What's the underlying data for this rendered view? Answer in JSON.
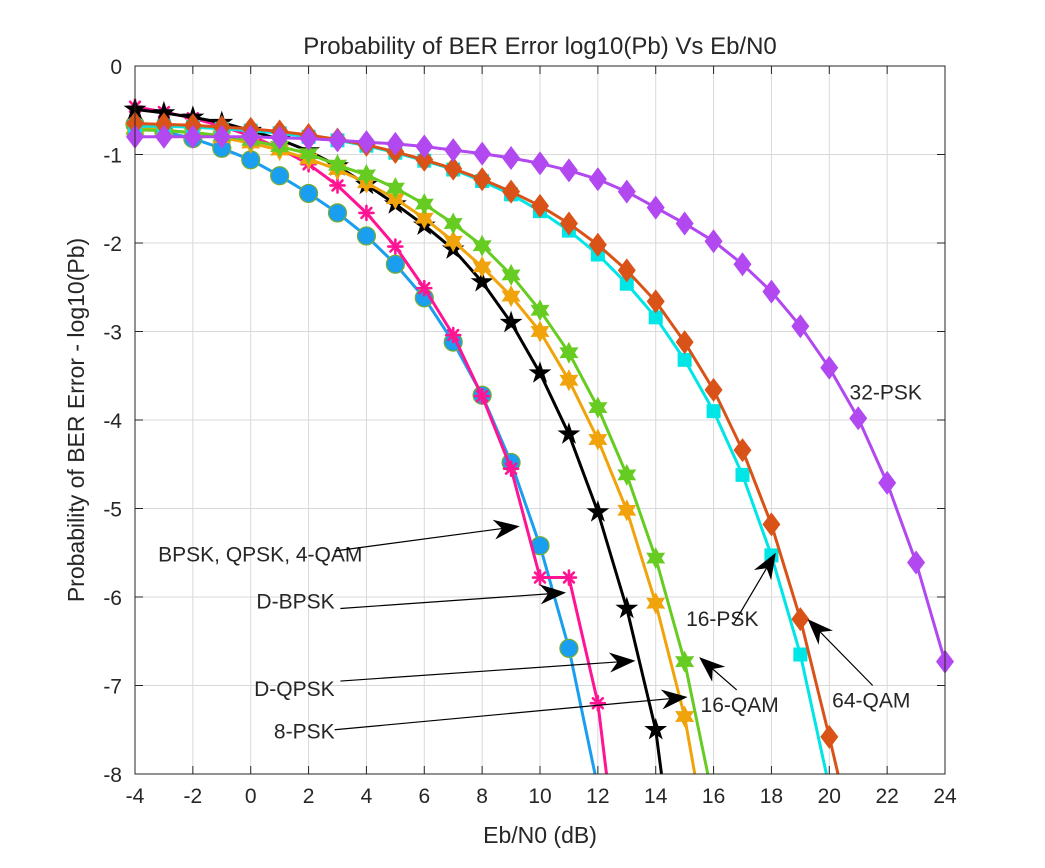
{
  "chart_data": {
    "type": "line",
    "title": "Probability of BER Error log10(Pb) Vs Eb/N0",
    "xlabel": "Eb/N0 (dB)",
    "ylabel": "Probability of BER Error - log10(Pb)",
    "xlim": [
      -4,
      24
    ],
    "ylim": [
      -8,
      0
    ],
    "xticks": [
      -4,
      -2,
      0,
      2,
      4,
      6,
      8,
      10,
      12,
      14,
      16,
      18,
      20,
      22,
      24
    ],
    "yticks": [
      0,
      -1,
      -2,
      -3,
      -4,
      -5,
      -6,
      -7,
      -8
    ],
    "grid": true,
    "series": [
      {
        "id": "bpsk",
        "color": "#1a9ff0",
        "marker": "circle",
        "x": [
          -4,
          -3,
          -2,
          -1,
          0,
          1,
          2,
          3,
          4,
          5,
          6,
          7,
          8,
          9,
          10,
          11,
          11.9
        ],
        "y": [
          -0.66,
          -0.74,
          -0.82,
          -0.93,
          -1.06,
          -1.24,
          -1.44,
          -1.66,
          -1.92,
          -2.24,
          -2.62,
          -3.12,
          -3.72,
          -4.48,
          -5.42,
          -6.58,
          -8.0
        ]
      },
      {
        "id": "dbpsk",
        "color": "#ff1493",
        "marker": "asterisk",
        "x": [
          -4,
          -3,
          -2,
          -1,
          0,
          1,
          2,
          3,
          4,
          5,
          6,
          7,
          8,
          9,
          10,
          11,
          12,
          12.3
        ],
        "y": [
          -0.46,
          -0.52,
          -0.59,
          -0.68,
          -0.79,
          -0.93,
          -1.11,
          -1.35,
          -1.66,
          -2.04,
          -2.51,
          -3.04,
          -3.73,
          -4.55,
          -5.78,
          -5.78,
          -7.2,
          -8.0
        ]
      },
      {
        "id": "dqpsk",
        "color": "#000000",
        "marker": "star",
        "x": [
          -4,
          -3,
          -2,
          -1,
          0,
          1,
          2,
          3,
          4,
          5,
          6,
          7,
          8,
          9,
          10,
          11,
          12,
          13,
          14,
          14.2
        ],
        "y": [
          -0.49,
          -0.53,
          -0.58,
          -0.64,
          -0.73,
          -0.83,
          -0.96,
          -1.13,
          -1.34,
          -1.56,
          -1.8,
          -2.07,
          -2.44,
          -2.9,
          -3.47,
          -4.16,
          -5.04,
          -6.13,
          -7.5,
          -8.0
        ]
      },
      {
        "id": "psk8",
        "color": "#f0a30a",
        "marker": "hexagram",
        "x": [
          -4,
          -3,
          -2,
          -1,
          0,
          1,
          2,
          3,
          4,
          5,
          6,
          7,
          8,
          9,
          10,
          11,
          12,
          13,
          14,
          15,
          15.35
        ],
        "y": [
          -0.7,
          -0.72,
          -0.76,
          -0.81,
          -0.87,
          -0.95,
          -1.05,
          -1.17,
          -1.32,
          -1.5,
          -1.72,
          -1.98,
          -2.27,
          -2.6,
          -3.0,
          -3.55,
          -4.22,
          -5.02,
          -6.07,
          -7.35,
          -8.0
        ]
      },
      {
        "id": "qam16",
        "color": "#66cc22",
        "marker": "hexagram",
        "x": [
          -4,
          -3,
          -2,
          -1,
          0,
          1,
          2,
          3,
          4,
          5,
          6,
          7,
          8,
          9,
          10,
          11,
          12,
          13,
          14,
          15,
          15.8
        ],
        "y": [
          -0.72,
          -0.73,
          -0.75,
          -0.79,
          -0.84,
          -0.91,
          -0.99,
          -1.12,
          -1.23,
          -1.38,
          -1.56,
          -1.78,
          -2.03,
          -2.36,
          -2.76,
          -3.24,
          -3.86,
          -4.62,
          -5.56,
          -6.73,
          -8.0
        ]
      },
      {
        "id": "psk16",
        "color": "#00e5e5",
        "marker": "square",
        "x": [
          -4,
          -3,
          -2,
          -1,
          0,
          1,
          2,
          3,
          4,
          5,
          6,
          7,
          8,
          9,
          10,
          11,
          12,
          13,
          14,
          15,
          16,
          17,
          18,
          19,
          19.9
        ],
        "y": [
          -0.68,
          -0.68,
          -0.69,
          -0.71,
          -0.73,
          -0.76,
          -0.8,
          -0.84,
          -0.9,
          -0.98,
          -1.07,
          -1.17,
          -1.3,
          -1.45,
          -1.64,
          -1.86,
          -2.13,
          -2.46,
          -2.84,
          -3.32,
          -3.9,
          -4.62,
          -5.53,
          -6.65,
          -8.0
        ]
      },
      {
        "id": "qam64",
        "color": "#d95319",
        "marker": "diamond",
        "x": [
          -4,
          -3,
          -2,
          -1,
          0,
          1,
          2,
          3,
          4,
          5,
          6,
          7,
          8,
          9,
          10,
          11,
          12,
          13,
          14,
          15,
          16,
          17,
          18,
          19,
          20,
          20.3
        ],
        "y": [
          -0.65,
          -0.66,
          -0.67,
          -0.69,
          -0.71,
          -0.74,
          -0.78,
          -0.83,
          -0.89,
          -0.97,
          -1.06,
          -1.16,
          -1.28,
          -1.42,
          -1.58,
          -1.78,
          -2.02,
          -2.31,
          -2.66,
          -3.12,
          -3.66,
          -4.34,
          -5.18,
          -6.25,
          -7.58,
          -8.0
        ]
      },
      {
        "id": "psk32",
        "color": "#b148f0",
        "marker": "diamond",
        "x": [
          -4,
          -3,
          -2,
          -1,
          0,
          1,
          2,
          3,
          4,
          5,
          6,
          7,
          8,
          9,
          10,
          11,
          12,
          13,
          14,
          15,
          16,
          17,
          18,
          19,
          20,
          21,
          22,
          23,
          24
        ],
        "y": [
          -0.8,
          -0.8,
          -0.8,
          -0.8,
          -0.8,
          -0.81,
          -0.82,
          -0.84,
          -0.86,
          -0.88,
          -0.91,
          -0.95,
          -0.99,
          -1.04,
          -1.1,
          -1.18,
          -1.28,
          -1.42,
          -1.6,
          -1.78,
          -1.98,
          -2.24,
          -2.55,
          -2.94,
          -3.41,
          -3.98,
          -4.71,
          -5.61,
          -6.73
        ]
      }
    ],
    "annotations": [
      {
        "label": "BPSK, QPSK, 4-QAM",
        "text_at": [
          -3.2,
          -5.6
        ],
        "tail": [
          2.9,
          -5.48
        ],
        "head": [
          9.3,
          -5.2
        ],
        "anchor": "start"
      },
      {
        "label": "D-BPSK",
        "text_at": [
          2.9,
          -6.13
        ],
        "tail": [
          3.1,
          -6.13
        ],
        "head": [
          10.9,
          -5.95
        ],
        "anchor": "end"
      },
      {
        "label": "D-QPSK",
        "text_at": [
          2.9,
          -7.12
        ],
        "tail": [
          3.1,
          -6.95
        ],
        "head": [
          13.3,
          -6.72
        ],
        "anchor": "end"
      },
      {
        "label": "8-PSK",
        "text_at": [
          2.9,
          -7.6
        ],
        "tail": [
          2.9,
          -7.5
        ],
        "head": [
          15.1,
          -7.13
        ],
        "anchor": "end"
      },
      {
        "label": "16-PSK",
        "text_at": [
          15.05,
          -6.33
        ],
        "tail": [
          16.7,
          -6.3
        ],
        "head": [
          18.15,
          -5.5
        ],
        "anchor": "start"
      },
      {
        "label": "16-QAM",
        "text_at": [
          15.55,
          -7.3
        ],
        "tail": [
          16.8,
          -7.05
        ],
        "head": [
          15.5,
          -6.68
        ],
        "anchor": "start"
      },
      {
        "label": "64-QAM",
        "text_at": [
          20.1,
          -7.25
        ],
        "tail": [
          21.5,
          -7.0
        ],
        "head": [
          19.25,
          -6.25
        ],
        "anchor": "start"
      },
      {
        "label": "32-PSK",
        "text_at": [
          20.7,
          -3.77
        ],
        "anchor": "start"
      }
    ]
  }
}
